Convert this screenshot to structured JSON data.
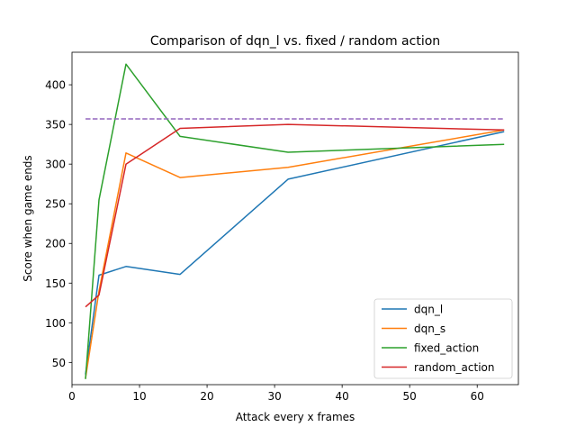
{
  "chart_data": {
    "type": "line",
    "title": "Comparison of dqn_l vs. fixed / random action",
    "xlabel": "Attack every x frames",
    "ylabel": "Score when game ends",
    "xlim": [
      0,
      66.1
    ],
    "ylim": [
      22,
      441
    ],
    "xticks": [
      0,
      10,
      20,
      30,
      40,
      50,
      60
    ],
    "yticks": [
      50,
      100,
      150,
      200,
      250,
      300,
      350,
      400
    ],
    "grid": false,
    "legend_position": "lower right",
    "series": [
      {
        "name": "dqn_l",
        "color": "#1f77b4",
        "x": [
          2,
          4,
          8,
          16,
          32,
          64
        ],
        "y": [
          35,
          160,
          171,
          161,
          281,
          341
        ]
      },
      {
        "name": "dqn_s",
        "color": "#ff7f0e",
        "x": [
          2,
          4,
          8,
          16,
          32,
          64
        ],
        "y": [
          30,
          140,
          314,
          283,
          296,
          343
        ]
      },
      {
        "name": "fixed_action",
        "color": "#2ca02c",
        "x": [
          2,
          4,
          8,
          16,
          32,
          64
        ],
        "y": [
          29,
          255,
          426,
          335,
          315,
          325
        ]
      },
      {
        "name": "random_action",
        "color": "#d62728",
        "x": [
          2,
          4,
          8,
          16,
          32,
          64
        ],
        "y": [
          120,
          135,
          300,
          345,
          350,
          343
        ]
      }
    ],
    "reference_line": {
      "color": "#9467bd",
      "style": "dashed",
      "x": [
        2,
        64
      ],
      "y": 357
    }
  }
}
